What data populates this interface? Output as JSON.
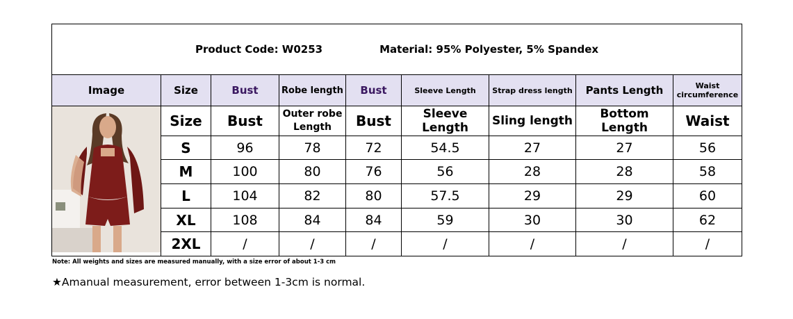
{
  "header": {
    "product_code": "Product Code: W0253",
    "material": "Material: 95% Polyester, 5% Spandex"
  },
  "table": {
    "header_row_1": [
      "Image",
      "Size",
      "Bust",
      "Robe length",
      "Bust",
      "Sleeve Length",
      "Strap dress length",
      "Pants Length",
      "Waist circumference"
    ],
    "header_row_2": [
      "Size",
      "Bust",
      "Outer robe Length",
      "Bust",
      "Sleeve Length",
      "Sling length",
      "Bottom Length",
      "Waist"
    ],
    "rows": [
      [
        "S",
        96,
        78,
        72,
        54.5,
        27,
        27,
        56
      ],
      [
        "M",
        100,
        80,
        76,
        56,
        28,
        28,
        58
      ],
      [
        "L",
        104,
        82,
        80,
        57.5,
        29,
        29,
        60
      ],
      [
        "XL",
        108,
        84,
        84,
        59,
        30,
        30,
        62
      ],
      [
        "2XL",
        "/",
        "/",
        "/",
        "/",
        "/",
        "/",
        "/"
      ]
    ]
  },
  "notes": {
    "note": "Note: All weights and sizes are measured manually, with a size error of about 1-3 cm",
    "footnote": "★Amanual measurement, error between 1-3cm is normal."
  }
}
